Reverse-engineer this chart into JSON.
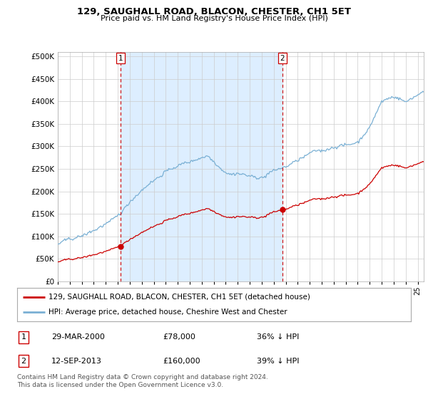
{
  "title": "129, SAUGHALL ROAD, BLACON, CHESTER, CH1 5ET",
  "subtitle": "Price paid vs. HM Land Registry's House Price Index (HPI)",
  "ylabel_ticks": [
    0,
    50000,
    100000,
    150000,
    200000,
    250000,
    300000,
    350000,
    400000,
    450000,
    500000
  ],
  "ylim": [
    0,
    510000
  ],
  "xlim_start": 1995.0,
  "xlim_end": 2025.5,
  "transaction1": {
    "date": "29-MAR-2000",
    "price": 78000,
    "label": "1",
    "year": 2000.23
  },
  "transaction2": {
    "date": "12-SEP-2013",
    "price": 160000,
    "label": "2",
    "year": 2013.71
  },
  "legend_property": "129, SAUGHALL ROAD, BLACON, CHESTER, CH1 5ET (detached house)",
  "legend_hpi": "HPI: Average price, detached house, Cheshire West and Chester",
  "footnote": "Contains HM Land Registry data © Crown copyright and database right 2024.\nThis data is licensed under the Open Government Licence v3.0.",
  "table_rows": [
    {
      "label": "1",
      "date": "29-MAR-2000",
      "price": "£78,000",
      "note": "36% ↓ HPI"
    },
    {
      "label": "2",
      "date": "12-SEP-2013",
      "price": "£160,000",
      "note": "39% ↓ HPI"
    }
  ],
  "property_line_color": "#cc0000",
  "hpi_line_color": "#7ab0d4",
  "hpi_fill_color": "#ddeeff",
  "vline_color": "#cc0000",
  "background_color": "#ffffff",
  "shade_color": "#ddeeff"
}
